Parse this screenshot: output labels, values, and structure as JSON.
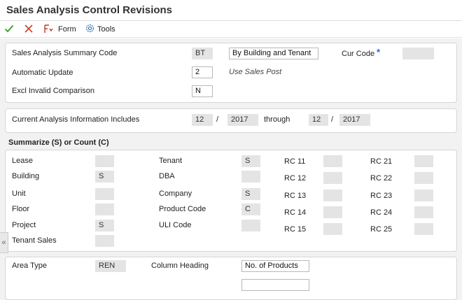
{
  "window": {
    "title": "Sales Analysis Control Revisions"
  },
  "toolbar": {
    "ok_icon": "checkmark-icon",
    "cancel_icon": "x-icon",
    "form_label": "Form",
    "tools_label": "Tools",
    "colors": {
      "ok": "#3a9a2a",
      "cancel": "#d33b2c",
      "form": "#c0392b",
      "tools": "#2a6fb8"
    }
  },
  "header_panel": {
    "summary_code_label": "Sales Analysis Summary Code",
    "summary_code_value": "BT",
    "summary_code_desc": "By Building and Tenant",
    "cur_code_label": "Cur Code",
    "cur_code_required": "*",
    "cur_code_value": "",
    "auto_update_label": "Automatic Update",
    "auto_update_value": "2",
    "auto_update_desc": "Use Sales Post",
    "excl_label": "Excl Invalid Comparison",
    "excl_value": "N"
  },
  "period_panel": {
    "label": "Current Analysis Information Includes",
    "from_period": "12",
    "sep1": "/",
    "from_year": "2017",
    "through_label": "through",
    "to_period": "12",
    "sep2": "/",
    "to_year": "2017"
  },
  "summarize": {
    "heading": "Summarize (S) or Count (C)",
    "col1": [
      {
        "label": "Lease",
        "value": ""
      },
      {
        "label": "Building",
        "value": "S"
      },
      {
        "label": "Unit",
        "value": ""
      },
      {
        "label": "Floor",
        "value": ""
      },
      {
        "label": "Project",
        "value": "S"
      },
      {
        "label": "Tenant Sales",
        "value": ""
      }
    ],
    "col2": [
      {
        "label": "Tenant",
        "value": "S"
      },
      {
        "label": "DBA",
        "value": ""
      },
      {
        "label": "Company",
        "value": "S"
      },
      {
        "label": "Product Code",
        "value": "C"
      },
      {
        "label": "ULI Code",
        "value": ""
      }
    ],
    "col3": [
      {
        "label": "RC 11",
        "value": ""
      },
      {
        "label": "RC 12",
        "value": ""
      },
      {
        "label": "RC 13",
        "value": ""
      },
      {
        "label": "RC 14",
        "value": ""
      },
      {
        "label": "RC 15",
        "value": ""
      }
    ],
    "col4": [
      {
        "label": "RC 21",
        "value": ""
      },
      {
        "label": "RC 22",
        "value": ""
      },
      {
        "label": "RC 23",
        "value": ""
      },
      {
        "label": "RC 24",
        "value": ""
      },
      {
        "label": "RC 25",
        "value": ""
      }
    ]
  },
  "bottom_panel": {
    "area_type_label": "Area Type",
    "area_type_value": "REN",
    "column_heading_label": "Column Heading",
    "column_heading_value": "No. of Products",
    "column_heading_value2": ""
  },
  "sidetab": {
    "glyph": "«"
  }
}
